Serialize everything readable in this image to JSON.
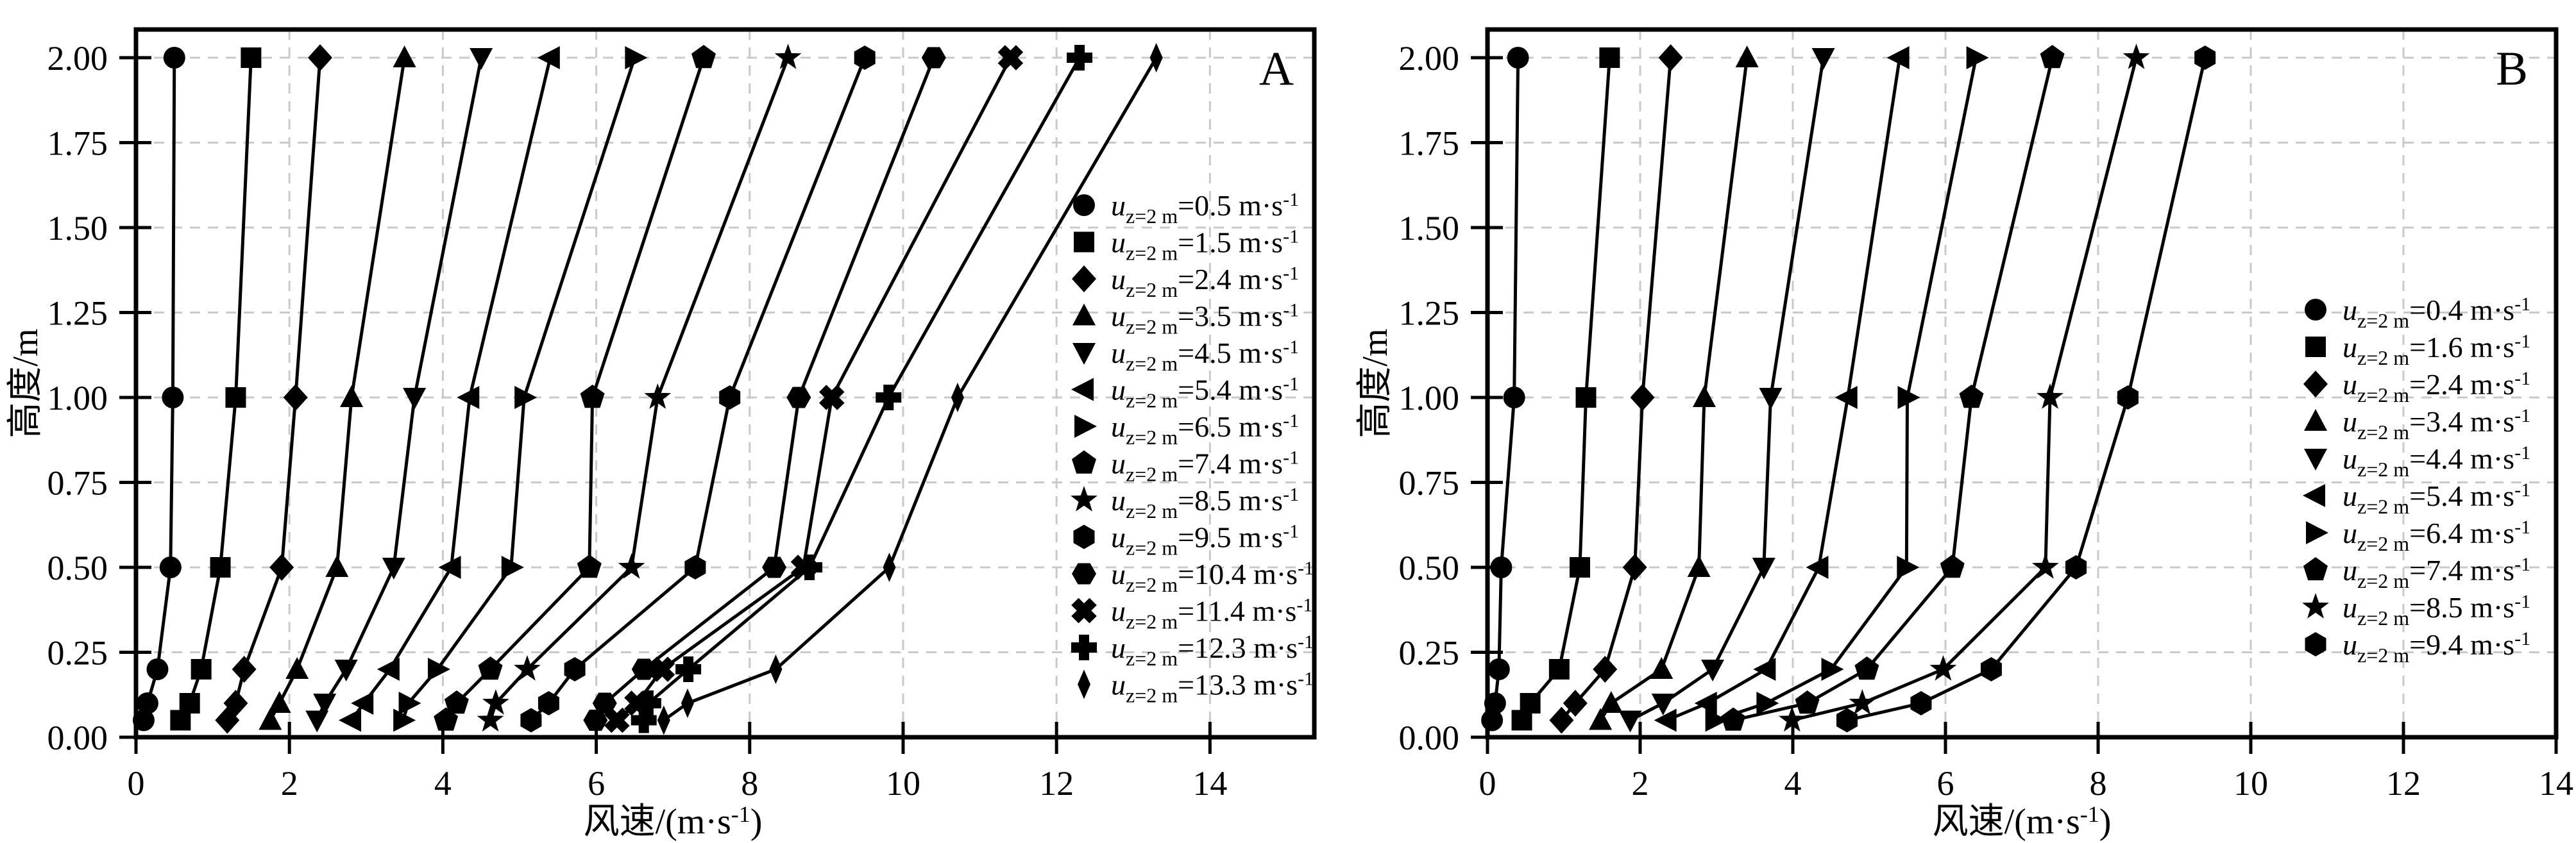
{
  "figure": {
    "background": "#ffffff",
    "line_color": "#000000",
    "grid_color": "#c9c9c9",
    "frame_color": "#000000"
  },
  "legend_template": {
    "variable": "u",
    "subscript": "z=2 m",
    "equals": "=",
    "unit": " m·s",
    "unit_superscript": "-1"
  },
  "chart_data": [
    {
      "id": "panel-a",
      "type": "line",
      "corner_label": "A",
      "xlabel_main": "风速/(m·s",
      "xlabel_sup": "-1",
      "xlabel_close": ")",
      "ylabel": "高度/m",
      "xlim": [
        0,
        15.36
      ],
      "ylim": [
        0,
        2.083
      ],
      "x_ticks": [
        0,
        2,
        4,
        6,
        8,
        10,
        12,
        14
      ],
      "x_tick_labels": [
        "0",
        "2",
        "4",
        "6",
        "8",
        "10",
        "12",
        "14"
      ],
      "y_ticks": [
        0,
        0.25,
        0.5,
        0.75,
        1.0,
        1.25,
        1.5,
        1.75,
        2.0
      ],
      "y_tick_labels": [
        "0.00",
        "0.25",
        "0.50",
        "0.75",
        "1.00",
        "1.25",
        "1.50",
        "1.75",
        "2.00"
      ],
      "grid": true,
      "legend_position": "inside-right",
      "heights_m": [
        0.05,
        0.1,
        0.2,
        0.5,
        1.0,
        2.0
      ],
      "series": [
        {
          "value_label": "0.5",
          "marker": "circle",
          "values": [
            0.1,
            0.15,
            0.28,
            0.45,
            0.48,
            0.5
          ]
        },
        {
          "value_label": "1.5",
          "marker": "square",
          "values": [
            0.58,
            0.7,
            0.85,
            1.1,
            1.3,
            1.5
          ]
        },
        {
          "value_label": "2.4",
          "marker": "diamond",
          "values": [
            1.19,
            1.3,
            1.41,
            1.9,
            2.08,
            2.4
          ]
        },
        {
          "value_label": "3.5",
          "marker": "triangle-up",
          "values": [
            1.75,
            1.87,
            2.1,
            2.62,
            2.81,
            3.5
          ]
        },
        {
          "value_label": "4.5",
          "marker": "triangle-down",
          "values": [
            2.36,
            2.46,
            2.74,
            3.36,
            3.63,
            4.5
          ]
        },
        {
          "value_label": "5.4",
          "marker": "triangle-left",
          "values": [
            2.81,
            2.97,
            3.31,
            4.11,
            4.35,
            5.4
          ]
        },
        {
          "value_label": "6.5",
          "marker": "triangle-right",
          "values": [
            3.48,
            3.55,
            3.93,
            4.89,
            5.06,
            6.5
          ]
        },
        {
          "value_label": "7.4",
          "marker": "pentagon",
          "values": [
            4.04,
            4.18,
            4.62,
            5.91,
            5.95,
            7.4
          ]
        },
        {
          "value_label": "8.5",
          "marker": "star",
          "values": [
            4.62,
            4.69,
            5.1,
            6.46,
            6.8,
            8.5
          ]
        },
        {
          "value_label": "9.5",
          "marker": "hexagon",
          "values": [
            5.15,
            5.38,
            5.72,
            7.29,
            7.74,
            9.5
          ]
        },
        {
          "value_label": "10.4",
          "marker": "hexagon-flat",
          "values": [
            5.99,
            6.11,
            6.62,
            8.32,
            8.64,
            10.4
          ]
        },
        {
          "value_label": "11.4",
          "marker": "xstar",
          "values": [
            6.27,
            6.53,
            6.86,
            8.7,
            9.07,
            11.4
          ]
        },
        {
          "value_label": "12.3",
          "marker": "plus",
          "values": [
            6.62,
            6.68,
            7.2,
            8.78,
            9.81,
            12.3
          ]
        },
        {
          "value_label": "13.3",
          "marker": "diamond-thin",
          "values": [
            6.88,
            7.19,
            8.34,
            9.82,
            10.71,
            13.3
          ]
        }
      ]
    },
    {
      "id": "panel-b",
      "type": "line",
      "corner_label": "B",
      "xlabel_main": "风速/(m·s",
      "xlabel_sup": "-1",
      "xlabel_close": ")",
      "ylabel": "高度/m",
      "xlim": [
        0,
        14
      ],
      "ylim": [
        0,
        2.083
      ],
      "x_ticks": [
        0,
        2,
        4,
        6,
        8,
        10,
        12,
        14
      ],
      "x_tick_labels": [
        "0",
        "2",
        "4",
        "6",
        "8",
        "10",
        "12",
        "14"
      ],
      "y_ticks": [
        0,
        0.25,
        0.5,
        0.75,
        1.0,
        1.25,
        1.5,
        1.75,
        2.0
      ],
      "y_tick_labels": [
        "0.00",
        "0.25",
        "0.50",
        "0.75",
        "1.00",
        "1.25",
        "1.50",
        "1.75",
        "2.00"
      ],
      "grid": true,
      "legend_position": "inside-right",
      "heights_m": [
        0.05,
        0.1,
        0.2,
        0.5,
        1.0,
        2.0
      ],
      "series": [
        {
          "value_label": "0.4",
          "marker": "circle",
          "values": [
            0.06,
            0.1,
            0.15,
            0.18,
            0.35,
            0.4
          ]
        },
        {
          "value_label": "1.6",
          "marker": "square",
          "values": [
            0.45,
            0.56,
            0.94,
            1.21,
            1.29,
            1.6
          ]
        },
        {
          "value_label": "2.4",
          "marker": "diamond",
          "values": [
            0.97,
            1.15,
            1.54,
            1.93,
            2.03,
            2.4
          ]
        },
        {
          "value_label": "3.4",
          "marker": "triangle-up",
          "values": [
            1.48,
            1.62,
            2.28,
            2.77,
            2.84,
            3.4
          ]
        },
        {
          "value_label": "4.4",
          "marker": "triangle-down",
          "values": [
            1.87,
            2.3,
            2.95,
            3.62,
            3.71,
            4.4
          ]
        },
        {
          "value_label": "5.4",
          "marker": "triangle-left",
          "values": [
            2.35,
            2.88,
            3.65,
            4.34,
            4.72,
            5.4
          ]
        },
        {
          "value_label": "6.4",
          "marker": "triangle-right",
          "values": [
            2.98,
            3.65,
            4.5,
            5.49,
            5.5,
            6.4
          ]
        },
        {
          "value_label": "7.4",
          "marker": "pentagon",
          "values": [
            3.22,
            4.19,
            4.97,
            6.09,
            6.34,
            7.4
          ]
        },
        {
          "value_label": "8.5",
          "marker": "star",
          "values": [
            3.99,
            4.91,
            5.97,
            7.31,
            7.37,
            8.5
          ]
        },
        {
          "value_label": "9.4",
          "marker": "hexagon",
          "values": [
            4.71,
            5.68,
            6.6,
            7.71,
            8.39,
            9.4
          ]
        }
      ]
    }
  ]
}
